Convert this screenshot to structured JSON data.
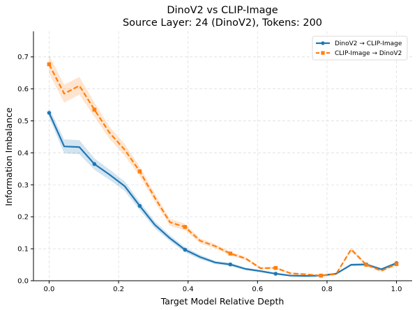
{
  "chart_data": {
    "type": "line",
    "title": "DinoV2 vs CLIP-Image",
    "subtitle": "Source Layer: 24 (DinoV2), Tokens: 200",
    "xlabel": "Target Model Relative Depth",
    "ylabel": "Information Imbalance",
    "xlim": [
      -0.045,
      1.045
    ],
    "ylim": [
      0,
      0.78
    ],
    "xticks": [
      0.0,
      0.2,
      0.4,
      0.6,
      0.8,
      1.0
    ],
    "xtick_labels": [
      "0.0",
      "0.2",
      "0.4",
      "0.6",
      "0.8",
      "1.0"
    ],
    "yticks": [
      0.0,
      0.1,
      0.2,
      0.3,
      0.4,
      0.5,
      0.6,
      0.7
    ],
    "ytick_labels": [
      "0.0",
      "0.1",
      "0.2",
      "0.3",
      "0.4",
      "0.5",
      "0.6",
      "0.7"
    ],
    "grid": true,
    "legend_position": "top-right",
    "x": [
      0.0,
      0.0435,
      0.087,
      0.1304,
      0.1739,
      0.2174,
      0.2609,
      0.3043,
      0.3478,
      0.3913,
      0.4348,
      0.4783,
      0.5217,
      0.5652,
      0.6087,
      0.6522,
      0.6957,
      0.7391,
      0.7826,
      0.8261,
      0.8696,
      0.913,
      0.9565,
      1.0
    ],
    "marker_indices": [
      0,
      3,
      6,
      9,
      12,
      15,
      18,
      21,
      23
    ],
    "series": [
      {
        "name": "DinoV2 → CLIP-Image",
        "color": "#1f77b4",
        "linestyle": "solid",
        "marker": "circle",
        "values": [
          0.525,
          0.42,
          0.418,
          0.365,
          0.332,
          0.296,
          0.234,
          0.175,
          0.133,
          0.097,
          0.074,
          0.057,
          0.051,
          0.037,
          0.03,
          0.022,
          0.016,
          0.015,
          0.016,
          0.022,
          0.05,
          0.051,
          0.036,
          0.055
        ],
        "band": [
          0.015,
          0.022,
          0.022,
          0.018,
          0.016,
          0.015,
          0.013,
          0.011,
          0.009,
          0.008,
          0.007,
          0.005,
          0.005,
          0.004,
          0.004,
          0.003,
          0.003,
          0.003,
          0.003,
          0.003,
          0.004,
          0.004,
          0.004,
          0.005
        ]
      },
      {
        "name": "CLIP-Image → DinoV2",
        "color": "#ff7f0e",
        "linestyle": "dashed",
        "marker": "square",
        "values": [
          0.677,
          0.585,
          0.61,
          0.535,
          0.463,
          0.41,
          0.342,
          0.26,
          0.183,
          0.168,
          0.125,
          0.108,
          0.085,
          0.07,
          0.039,
          0.04,
          0.023,
          0.02,
          0.016,
          0.021,
          0.098,
          0.05,
          0.031,
          0.052
        ],
        "band": [
          0.028,
          0.028,
          0.028,
          0.022,
          0.019,
          0.018,
          0.015,
          0.013,
          0.011,
          0.01,
          0.008,
          0.007,
          0.006,
          0.005,
          0.004,
          0.004,
          0.003,
          0.003,
          0.003,
          0.003,
          0.006,
          0.004,
          0.003,
          0.004
        ]
      }
    ]
  }
}
